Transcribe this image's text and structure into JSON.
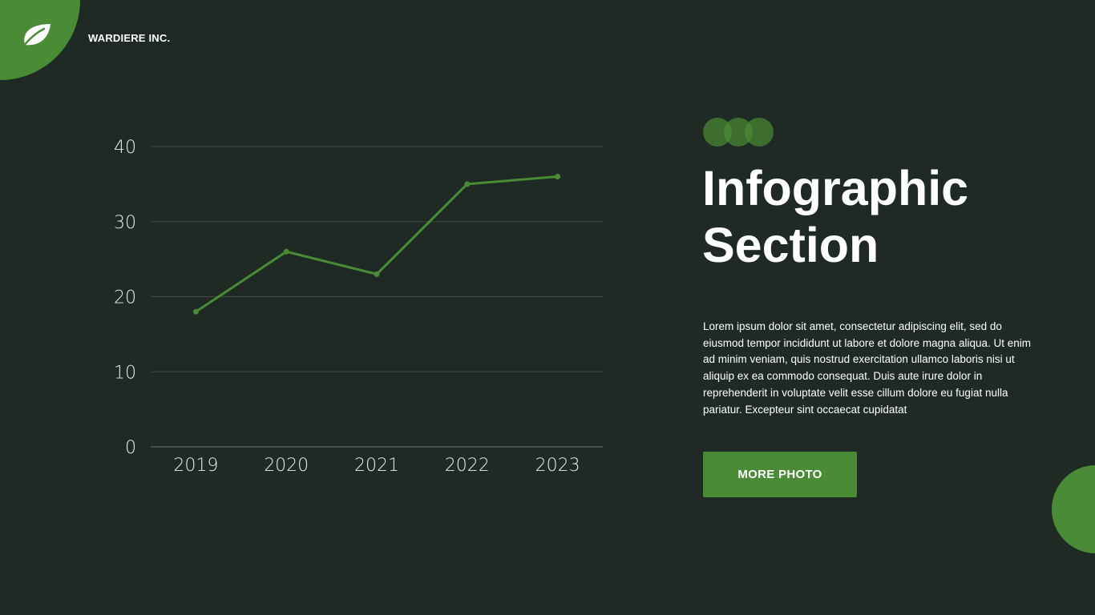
{
  "header": {
    "company": "WARDIERE INC.",
    "logo_icon": "leaf-icon"
  },
  "colors": {
    "background": "#1f2a24",
    "accent": "#4a8c35",
    "text": "#ffffff",
    "grid": "#3d4942"
  },
  "title": {
    "line1": "Infographic",
    "line2": "Section"
  },
  "body": "Lorem ipsum dolor sit amet, consectetur adipiscing elit, sed do eiusmod tempor incididunt ut labore et dolore magna aliqua. Ut enim ad minim veniam, quis nostrud exercitation ullamco laboris nisi ut aliquip ex ea commodo consequat. Duis aute irure dolor in reprehenderit in voluptate velit esse cillum dolore eu fugiat nulla pariatur. Excepteur sint occaecat cupidatat",
  "button": {
    "label": "MORE PHOTO"
  },
  "chart_data": {
    "type": "line",
    "categories": [
      "2019",
      "2020",
      "2021",
      "2022",
      "2023"
    ],
    "series": [
      {
        "values": [
          18,
          26,
          23,
          35,
          36
        ]
      }
    ],
    "ylim": [
      0,
      40
    ],
    "yticks": [
      0,
      10,
      20,
      30,
      40
    ],
    "grid": true,
    "title": "",
    "xlabel": "",
    "ylabel": ""
  }
}
